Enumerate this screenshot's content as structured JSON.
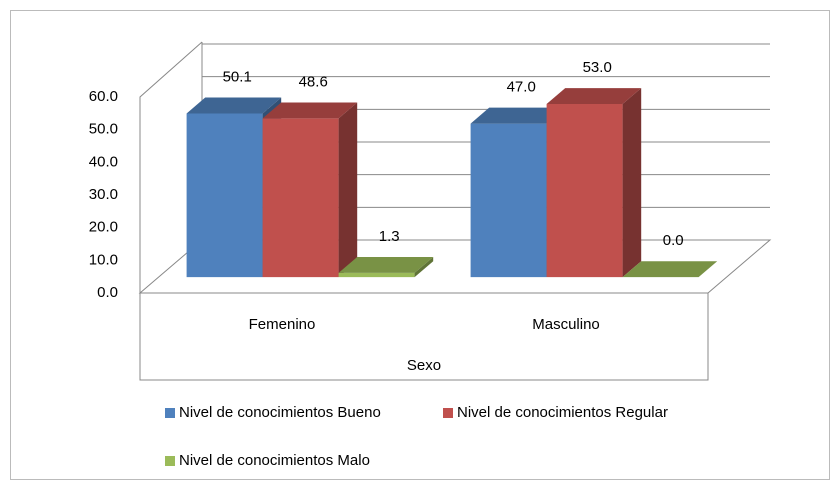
{
  "chart_data": {
    "type": "bar3d",
    "categories": [
      "Femenino",
      "Masculino"
    ],
    "x_label": "Sexo",
    "series": [
      {
        "name": "Nivel de conocimientos Bueno",
        "color": "#4f81bd",
        "values": [
          50.1,
          47.0
        ],
        "value_labels": [
          "50.1",
          "47.0"
        ]
      },
      {
        "name": "Nivel de conocimientos Regular",
        "color": "#c0504d",
        "values": [
          48.6,
          53.0
        ],
        "value_labels": [
          "48.6",
          "53.0"
        ]
      },
      {
        "name": "Nivel de conocimientos Malo",
        "color": "#9bbb59",
        "values": [
          1.3,
          0.0
        ],
        "value_labels": [
          "1.3",
          "0.0"
        ]
      }
    ],
    "ylim": [
      0,
      60
    ],
    "yticks": [
      {
        "value": 0,
        "label": "0.0"
      },
      {
        "value": 10,
        "label": "10.0"
      },
      {
        "value": 20,
        "label": "20.0"
      },
      {
        "value": 30,
        "label": "30.0"
      },
      {
        "value": 40,
        "label": "40.0"
      },
      {
        "value": 50,
        "label": "50.0"
      },
      {
        "value": 60,
        "label": "60.0"
      }
    ],
    "grid": true,
    "legend": "bottom"
  }
}
